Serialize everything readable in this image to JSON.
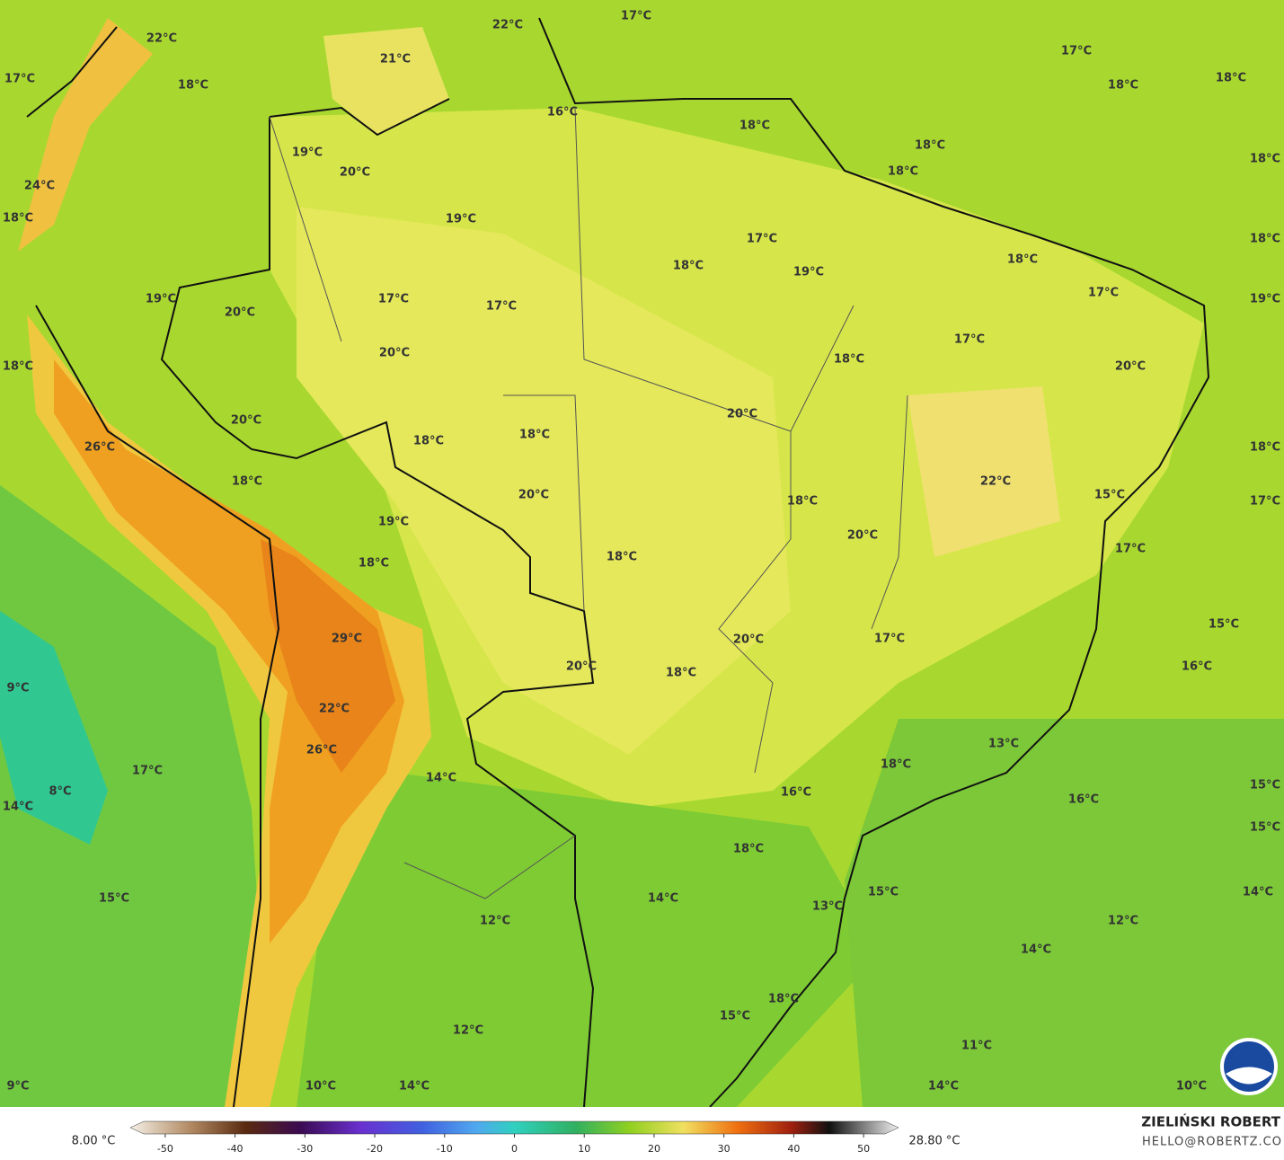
{
  "map": {
    "labels": [
      "22°C",
      "22°C",
      "17°C",
      "21°C",
      "17°C",
      "18°C",
      "17°C",
      "18°C",
      "18°C",
      "16°C",
      "18°C",
      "19°C",
      "20°C",
      "18°C",
      "18°C",
      "18°C",
      "24°C",
      "18°C",
      "19°C",
      "17°C",
      "18°C",
      "18°C",
      "19°C",
      "18°C",
      "17°C",
      "19°C",
      "19°C",
      "20°C",
      "17°C",
      "17°C",
      "17°C",
      "20°C",
      "18°C",
      "20°C",
      "18°C",
      "20°C",
      "20°C",
      "18°C",
      "18°C",
      "26°C",
      "18°C",
      "18°C",
      "22°C",
      "20°C",
      "18°C",
      "15°C",
      "17°C",
      "19°C",
      "20°C",
      "17°C",
      "18°C",
      "18°C",
      "15°C",
      "20°C",
      "17°C",
      "29°C",
      "20°C",
      "18°C",
      "16°C",
      "9°C",
      "22°C",
      "26°C",
      "13°C",
      "17°C",
      "18°C",
      "14°C",
      "16°C",
      "8°C",
      "16°C",
      "15°C",
      "14°C",
      "15°C",
      "18°C",
      "15°C",
      "14°C",
      "15°C",
      "14°C",
      "13°C",
      "12°C",
      "12°C",
      "14°C",
      "18°C",
      "15°C",
      "12°C",
      "11°C",
      "10°C",
      "14°C",
      "14°C",
      "10°C",
      "9°C"
    ]
  },
  "colorbar": {
    "min_label": "8.00 °C",
    "max_label": "28.80 °C",
    "ticks": [
      -50,
      -40,
      -30,
      -20,
      -10,
      0,
      10,
      20,
      30,
      40,
      50
    ],
    "range": [
      -55,
      55
    ]
  },
  "credit": {
    "name": "ZIELIŃSKI ROBERT",
    "email": "HELLO@ROBERTZ.CO"
  }
}
